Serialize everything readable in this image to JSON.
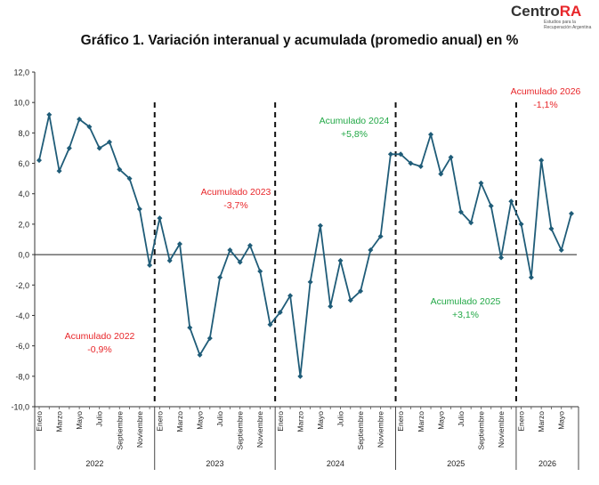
{
  "header": {
    "logo_prefix": "Centro",
    "logo_suffix": "RA",
    "logo_subtitle_line1": "Estudios para la",
    "logo_subtitle_line2": "Recuperación Argentina"
  },
  "chart_data": {
    "type": "line",
    "title": "Gráfico 1. Variación interanual y acumulada (promedio anual) en %",
    "xlabel": "",
    "ylabel": "",
    "ylim": [
      -10,
      12
    ],
    "yticks": [
      "12,0",
      "10,0",
      "8,0",
      "6,0",
      "4,0",
      "2,0",
      "0,0",
      "-2,0",
      "-4,0",
      "-6,0",
      "-8,0",
      "-10,0"
    ],
    "grid": false,
    "line_color": "#1f5c78",
    "annotation_colors": {
      "negative": "#e8262a",
      "positive": "#22a846"
    },
    "years": [
      {
        "label": "2022",
        "start": 0,
        "end": 11
      },
      {
        "label": "2023",
        "start": 12,
        "end": 23
      },
      {
        "label": "2024",
        "start": 24,
        "end": 35
      },
      {
        "label": "2025",
        "start": 36,
        "end": 47
      },
      {
        "label": "2026",
        "start": 48,
        "end": 53
      }
    ],
    "tick_labels": [
      {
        "index": 0,
        "label": "Enero"
      },
      {
        "index": 2,
        "label": "Marzo"
      },
      {
        "index": 4,
        "label": "Mayo"
      },
      {
        "index": 6,
        "label": "Julio"
      },
      {
        "index": 8,
        "label": "Septiembre"
      },
      {
        "index": 10,
        "label": "Noviembre"
      },
      {
        "index": 12,
        "label": "Enero"
      },
      {
        "index": 14,
        "label": "Marzo"
      },
      {
        "index": 16,
        "label": "Mayo"
      },
      {
        "index": 18,
        "label": "Julio"
      },
      {
        "index": 20,
        "label": "Septiembre"
      },
      {
        "index": 22,
        "label": "Noviembre"
      },
      {
        "index": 24,
        "label": "Enero"
      },
      {
        "index": 26,
        "label": "Marzo"
      },
      {
        "index": 28,
        "label": "Mayo"
      },
      {
        "index": 30,
        "label": "Julio"
      },
      {
        "index": 32,
        "label": "Septiembre"
      },
      {
        "index": 34,
        "label": "Noviembre"
      },
      {
        "index": 36,
        "label": "Enero"
      },
      {
        "index": 38,
        "label": "Marzo"
      },
      {
        "index": 40,
        "label": "Mayo"
      },
      {
        "index": 42,
        "label": "Julio"
      },
      {
        "index": 44,
        "label": "Septiembre"
      },
      {
        "index": 46,
        "label": "Noviembre"
      },
      {
        "index": 48,
        "label": "Enero"
      },
      {
        "index": 50,
        "label": "Marzo"
      },
      {
        "index": 52,
        "label": "Mayo"
      }
    ],
    "series": [
      {
        "values": [
          6.2,
          9.2,
          5.5,
          7.0,
          8.9,
          8.4,
          7.0,
          7.4,
          5.6,
          5.0,
          3.0,
          -0.7,
          2.4,
          -0.4,
          0.7,
          -4.8,
          -6.6,
          -5.5,
          -1.5,
          0.3,
          -0.5,
          0.6,
          -1.1,
          -4.6,
          -3.8,
          -2.7,
          -8.0,
          -1.8,
          1.9,
          -3.4,
          -0.4,
          -3.0,
          -2.4,
          0.3,
          1.2,
          6.6,
          6.6,
          6.0,
          5.8,
          7.9,
          5.3,
          6.4,
          2.8,
          2.1,
          4.7,
          3.2,
          -0.2,
          3.5,
          2.0,
          -1.5,
          6.2,
          1.7,
          0.3,
          2.7
        ]
      }
    ],
    "dividers_before_index": [
      12,
      24,
      36,
      48
    ],
    "annotations": [
      {
        "title": "Acumulado 2022",
        "value": "-0,9%",
        "tone": "negative"
      },
      {
        "title": "Acumulado 2023",
        "value": "-3,7%",
        "tone": "negative"
      },
      {
        "title": "Acumulado 2024",
        "value": "+5,8%",
        "tone": "positive"
      },
      {
        "title": "Acumulado 2025",
        "value": "+3,1%",
        "tone": "positive"
      },
      {
        "title": "Acumulado 2026",
        "value": "-1,1%",
        "tone": "negative"
      }
    ]
  }
}
